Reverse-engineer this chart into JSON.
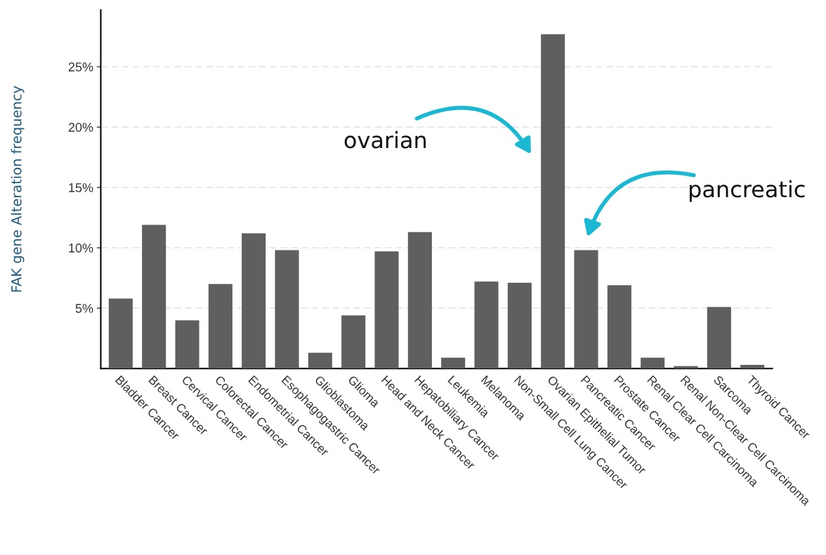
{
  "chart_data": {
    "type": "bar",
    "ylabel": "FAK gene Alteration frequency",
    "categories": [
      "Bladder Cancer",
      "Breast Cancer",
      "Cervical Cancer",
      "Colorectal Cancer",
      "Endometrial Cancer",
      "Esophagogastric Cancer",
      "Glioblastoma",
      "Glioma",
      "Head and Neck Cancer",
      "Hepatobiliary Cancer",
      "Leukemia",
      "Melanoma",
      "Non-Small Cell Lung Cancer",
      "Ovarian Epithelial Tumor",
      "Pancreatic Cancer",
      "Prostate Cancer",
      "Renal Clear Cell Carcinoma",
      "Renal Non-Clear Cell Carcinoma",
      "Sarcoma",
      "Thyroid Cancer"
    ],
    "values": [
      5.8,
      11.9,
      4.0,
      7.0,
      11.2,
      9.8,
      1.3,
      4.4,
      9.7,
      11.3,
      0.9,
      7.2,
      7.1,
      27.7,
      9.8,
      6.9,
      0.9,
      0.2,
      5.1,
      0.3
    ],
    "color": "#5f5f5f",
    "ylim": [
      0,
      29.7
    ],
    "yticks": [
      {
        "value": 5,
        "label": "5%"
      },
      {
        "value": 10,
        "label": "10%"
      },
      {
        "value": 15,
        "label": "15%"
      },
      {
        "value": 20,
        "label": "20%"
      },
      {
        "value": 25,
        "label": "25%"
      }
    ],
    "grid": "y",
    "annotations": [
      "ovarian",
      "pancreatic"
    ]
  }
}
